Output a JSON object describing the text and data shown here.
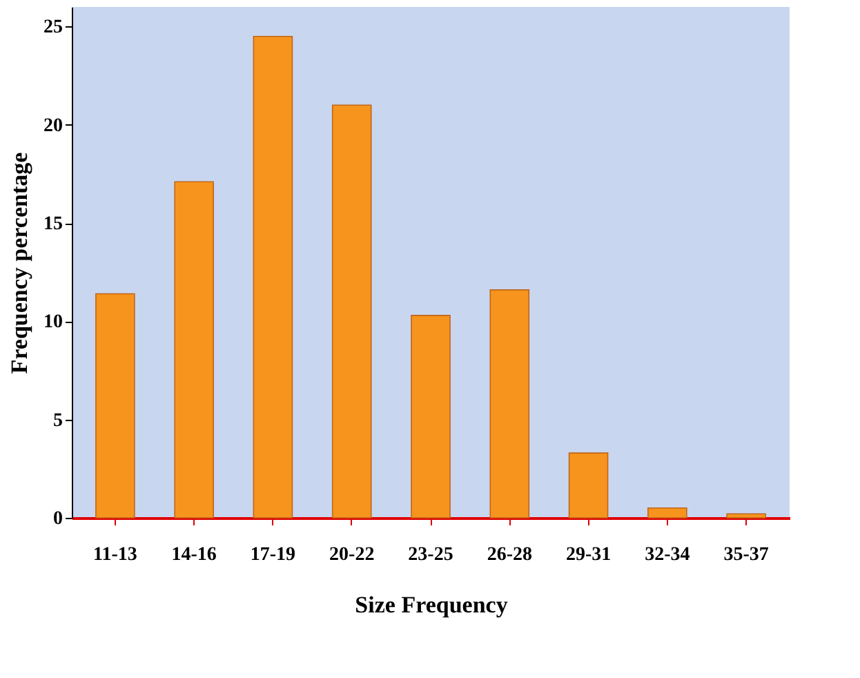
{
  "chart_data": {
    "type": "bar",
    "xlabel": "Size Frequency",
    "ylabel": "Frequency percentage",
    "categories": [
      "11-13",
      "14-16",
      "17-19",
      "20-22",
      "23-25",
      "26-28",
      "29-31",
      "32-34",
      "35-37"
    ],
    "values": [
      11.4,
      17.1,
      24.5,
      21.0,
      10.3,
      11.6,
      3.3,
      0.5,
      0.2
    ],
    "color": "#f7941d",
    "ylim": [
      0,
      26
    ],
    "yticks": [
      0,
      5,
      10,
      15,
      20,
      25
    ],
    "grid": false
  }
}
